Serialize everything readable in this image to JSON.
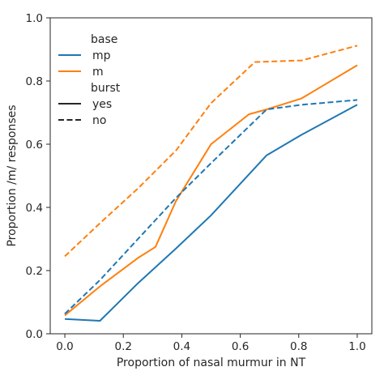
{
  "chart_data": {
    "type": "line",
    "title": "",
    "xlabel": "Proportion of nasal murmur in NT",
    "ylabel": "Proportion /m/ responses",
    "xlim": [
      -0.05,
      1.05
    ],
    "ylim": [
      0.0,
      1.0
    ],
    "xticks": [
      0.0,
      0.2,
      0.4,
      0.6,
      0.8,
      1.0
    ],
    "xtick_labels": [
      "0.0",
      "0.2",
      "0.4",
      "0.6",
      "0.8",
      "1.0"
    ],
    "yticks": [
      0.0,
      0.2,
      0.4,
      0.6,
      0.8,
      1.0
    ],
    "ytick_labels": [
      "0.0",
      "0.2",
      "0.4",
      "0.6",
      "0.8",
      "1.0"
    ],
    "grid": false,
    "legend_placement": "top-left",
    "legend": {
      "group1_title": "base",
      "group1_items": [
        {
          "label": "mp",
          "color": "#1f77b4",
          "dash": "solid"
        },
        {
          "label": "m",
          "color": "#ff7f0e",
          "dash": "solid"
        }
      ],
      "group2_title": "burst",
      "group2_items": [
        {
          "label": "yes",
          "color": "#262626",
          "dash": "solid"
        },
        {
          "label": "no",
          "color": "#262626",
          "dash": "dashed"
        }
      ]
    },
    "series": [
      {
        "base": "mp",
        "burst": "yes",
        "color": "#1f77b4",
        "dash": "solid",
        "x": [
          0.0,
          0.12,
          0.25,
          0.38,
          0.5,
          0.69,
          0.81,
          1.0
        ],
        "y": [
          0.047,
          0.041,
          0.16,
          0.27,
          0.375,
          0.565,
          0.63,
          0.725
        ]
      },
      {
        "base": "m",
        "burst": "yes",
        "color": "#ff7f0e",
        "dash": "solid",
        "x": [
          0.0,
          0.12,
          0.25,
          0.31,
          0.38,
          0.5,
          0.63,
          0.69,
          0.81,
          1.0
        ],
        "y": [
          0.058,
          0.15,
          0.24,
          0.275,
          0.42,
          0.6,
          0.695,
          0.71,
          0.745,
          0.85
        ]
      },
      {
        "base": "mp",
        "burst": "no",
        "color": "#1f77b4",
        "dash": "dashed",
        "x": [
          0.0,
          0.12,
          0.25,
          0.38,
          0.5,
          0.69,
          0.81,
          1.0
        ],
        "y": [
          0.063,
          0.17,
          0.3,
          0.43,
          0.54,
          0.71,
          0.725,
          0.74
        ]
      },
      {
        "base": "m",
        "burst": "no",
        "color": "#ff7f0e",
        "dash": "dashed",
        "x": [
          0.0,
          0.12,
          0.25,
          0.38,
          0.5,
          0.65,
          0.81,
          1.0
        ],
        "y": [
          0.245,
          0.35,
          0.46,
          0.58,
          0.73,
          0.86,
          0.865,
          0.912
        ]
      }
    ]
  }
}
